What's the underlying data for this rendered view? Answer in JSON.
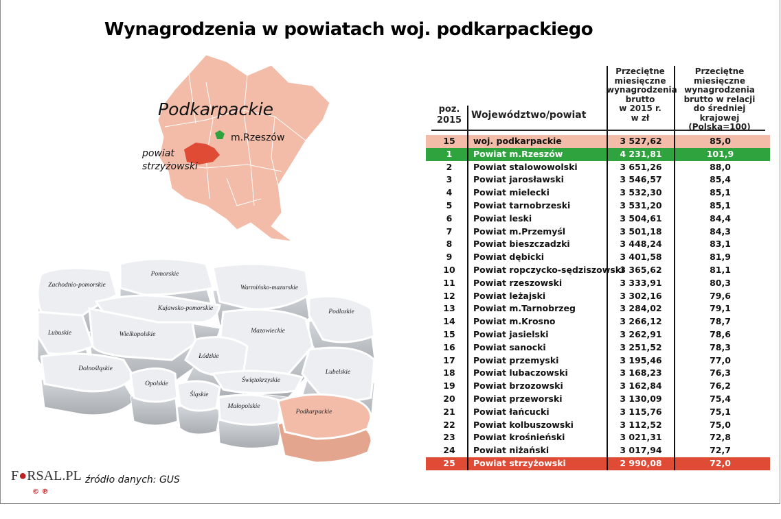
{
  "title": "Wynagrodzenia w powiatach woj. podkarpackiego",
  "colors": {
    "region_fill": "#f2bca8",
    "highlight_green": "#2ea33e",
    "highlight_red": "#e04b35",
    "voivodeship_row": "#f2bca8"
  },
  "region_map": {
    "region_label": "Podkarpackie",
    "city_label": "m.Rzeszów",
    "county_label_line1": "powiat",
    "county_label_line2": "strzyżowski"
  },
  "poland_map": {
    "voivodeships": [
      "Zachodnio-pomorskie",
      "Pomorskie",
      "Warmińsko-mazurskie",
      "Podlaskie",
      "Kujawsko-pomorskie",
      "Lubuskie",
      "Wielkopolskie",
      "Mazowieckie",
      "Łódzkie",
      "Dolnośląskie",
      "Lubelskie",
      "Opolskie",
      "Świętokrzyskie",
      "Śląskie",
      "Małopolskie",
      "Podkarpackie"
    ],
    "highlighted": "Podkarpackie"
  },
  "source": "źródło danych: GUS",
  "logo": {
    "text": "FORSAL.PL",
    "mark": "©℗"
  },
  "chart_data": {
    "type": "table",
    "title": "Wynagrodzenia w powiatach woj. podkarpackiego",
    "columns": [
      "poz. 2015",
      "Województwo/powiat",
      "Przeciętne miesięczne wynagrodzenia brutto w 2015 r. w zł",
      "Przeciętne miesięczne wynagrodzenia brutto w relacji do średniej krajowej (Polska=100)"
    ],
    "header_lines": {
      "col1": [
        "poz.",
        "2015"
      ],
      "col3": [
        "Przeciętne",
        "miesięczne",
        "wynagrodzenia",
        "brutto",
        "w 2015 r.",
        "w zł"
      ],
      "col4": [
        "Przeciętne",
        "miesięczne",
        "wynagrodzenia",
        "brutto w relacji",
        "do średniej krajowej",
        "(Polska=100)"
      ]
    },
    "rows": [
      {
        "pos": "15",
        "name": "woj. podkarpackie",
        "wage": "3 527,62",
        "index": "85,0",
        "highlight": "voivodeship"
      },
      {
        "pos": "1",
        "name": "Powiat m.Rzeszów",
        "wage": "4 231,81",
        "index": "101,9",
        "highlight": "best"
      },
      {
        "pos": "2",
        "name": "Powiat stalowowolski",
        "wage": "3 651,26",
        "index": "88,0"
      },
      {
        "pos": "3",
        "name": "Powiat jarosławski",
        "wage": "3 546,57",
        "index": "85,4"
      },
      {
        "pos": "4",
        "name": "Powiat mielecki",
        "wage": "3 532,30",
        "index": "85,1"
      },
      {
        "pos": "5",
        "name": "Powiat tarnobrzeski",
        "wage": "3 531,20",
        "index": "85,1"
      },
      {
        "pos": "6",
        "name": "Powiat leski",
        "wage": "3 504,61",
        "index": "84,4"
      },
      {
        "pos": "7",
        "name": "Powiat m.Przemyśl",
        "wage": "3 501,18",
        "index": "84,3"
      },
      {
        "pos": "8",
        "name": "Powiat bieszczadzki",
        "wage": "3 448,24",
        "index": "83,1"
      },
      {
        "pos": "9",
        "name": "Powiat dębicki",
        "wage": "3 401,58",
        "index": "81,9"
      },
      {
        "pos": "10",
        "name": "Powiat ropczycko-sędziszowski",
        "wage": "3 365,62",
        "index": "81,1"
      },
      {
        "pos": "11",
        "name": "Powiat rzeszowski",
        "wage": "3 333,91",
        "index": "80,3"
      },
      {
        "pos": "12",
        "name": "Powiat leżajski",
        "wage": "3 302,16",
        "index": "79,6"
      },
      {
        "pos": "13",
        "name": "Powiat m.Tarnobrzeg",
        "wage": "3 284,02",
        "index": "79,1"
      },
      {
        "pos": "14",
        "name": "Powiat m.Krosno",
        "wage": "3 266,12",
        "index": "78,7"
      },
      {
        "pos": "15",
        "name": "Powiat jasielski",
        "wage": "3 262,91",
        "index": "78,6"
      },
      {
        "pos": "16",
        "name": "Powiat sanocki",
        "wage": "3 251,52",
        "index": "78,3"
      },
      {
        "pos": "17",
        "name": "Powiat przemyski",
        "wage": "3 195,46",
        "index": "77,0"
      },
      {
        "pos": "18",
        "name": "Powiat lubaczowski",
        "wage": "3 168,23",
        "index": "76,3"
      },
      {
        "pos": "19",
        "name": "Powiat brzozowski",
        "wage": "3 162,84",
        "index": "76,2"
      },
      {
        "pos": "20",
        "name": "Powiat przeworski",
        "wage": "3 130,09",
        "index": "75,4"
      },
      {
        "pos": "21",
        "name": "Powiat łańcucki",
        "wage": "3 115,76",
        "index": "75,1"
      },
      {
        "pos": "22",
        "name": "Powiat kolbuszowski",
        "wage": "3 112,52",
        "index": "75,0"
      },
      {
        "pos": "23",
        "name": "Powiat krośnieński",
        "wage": "3 021,31",
        "index": "72,8"
      },
      {
        "pos": "24",
        "name": "Powiat niżański",
        "wage": "3 017,94",
        "index": "72,7"
      },
      {
        "pos": "25",
        "name": "Powiat strzyżowski",
        "wage": "2 990,08",
        "index": "72,0",
        "highlight": "worst"
      }
    ]
  }
}
